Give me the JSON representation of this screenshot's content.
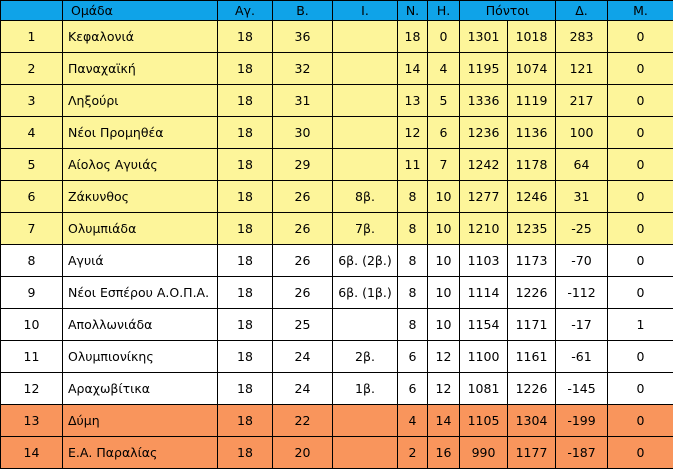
{
  "columns": [
    "",
    "Ομάδα",
    "Αγ.",
    "Β.",
    "Ι.",
    "Ν.",
    "Η.",
    "Πόντοι",
    "Δ.",
    "Μ."
  ],
  "colors": {
    "header": "#0fa3e8",
    "promo": "#fdf59a",
    "plain": "#ffffff",
    "releg": "#f9955c"
  },
  "rows": [
    {
      "pos": "1",
      "team": "Κεφαλονιά",
      "played": "18",
      "pts": "36",
      "tie": "",
      "w": "18",
      "l": "0",
      "pf": "1301",
      "pa": "1018",
      "diff": "283",
      "m": "0",
      "zone": "promo"
    },
    {
      "pos": "2",
      "team": "Παναχαϊκή",
      "played": "18",
      "pts": "32",
      "tie": "",
      "w": "14",
      "l": "4",
      "pf": "1195",
      "pa": "1074",
      "diff": "121",
      "m": "0",
      "zone": "promo"
    },
    {
      "pos": "3",
      "team": "Ληξούρι",
      "played": "18",
      "pts": "31",
      "tie": "",
      "w": "13",
      "l": "5",
      "pf": "1336",
      "pa": "1119",
      "diff": "217",
      "m": "0",
      "zone": "promo"
    },
    {
      "pos": "4",
      "team": "Νέοι Προμηθέα",
      "played": "18",
      "pts": "30",
      "tie": "",
      "w": "12",
      "l": "6",
      "pf": "1236",
      "pa": "1136",
      "diff": "100",
      "m": "0",
      "zone": "promo"
    },
    {
      "pos": "5",
      "team": "Αίολος Αγυιάς",
      "played": "18",
      "pts": "29",
      "tie": "",
      "w": "11",
      "l": "7",
      "pf": "1242",
      "pa": "1178",
      "diff": "64",
      "m": "0",
      "zone": "promo"
    },
    {
      "pos": "6",
      "team": "Ζάκυνθος",
      "played": "18",
      "pts": "26",
      "tie": "8β.",
      "w": "8",
      "l": "10",
      "pf": "1277",
      "pa": "1246",
      "diff": "31",
      "m": "0",
      "zone": "promo"
    },
    {
      "pos": "7",
      "team": "Ολυμπιάδα",
      "played": "18",
      "pts": "26",
      "tie": "7β.",
      "w": "8",
      "l": "10",
      "pf": "1210",
      "pa": "1235",
      "diff": "-25",
      "m": "0",
      "zone": "promo"
    },
    {
      "pos": "8",
      "team": "Αγυιά",
      "played": "18",
      "pts": "26",
      "tie": "6β. (2β.)",
      "w": "8",
      "l": "10",
      "pf": "1103",
      "pa": "1173",
      "diff": "-70",
      "m": "0",
      "zone": "plain"
    },
    {
      "pos": "9",
      "team": "Νέοι Εσπέρου Α.Ο.Π.Α.",
      "played": "18",
      "pts": "26",
      "tie": "6β. (1β.)",
      "w": "8",
      "l": "10",
      "pf": "1114",
      "pa": "1226",
      "diff": "-112",
      "m": "0",
      "zone": "plain"
    },
    {
      "pos": "10",
      "team": "Απολλωνιάδα",
      "played": "18",
      "pts": "25",
      "tie": "",
      "w": "8",
      "l": "10",
      "pf": "1154",
      "pa": "1171",
      "diff": "-17",
      "m": "1",
      "zone": "plain"
    },
    {
      "pos": "11",
      "team": "Ολυμπιονίκης",
      "played": "18",
      "pts": "24",
      "tie": "2β.",
      "w": "6",
      "l": "12",
      "pf": "1100",
      "pa": "1161",
      "diff": "-61",
      "m": "0",
      "zone": "plain"
    },
    {
      "pos": "12",
      "team": "Αραχωβίτικα",
      "played": "18",
      "pts": "24",
      "tie": "1β.",
      "w": "6",
      "l": "12",
      "pf": "1081",
      "pa": "1226",
      "diff": "-145",
      "m": "0",
      "zone": "plain"
    },
    {
      "pos": "13",
      "team": "Δύμη",
      "played": "18",
      "pts": "22",
      "tie": "",
      "w": "4",
      "l": "14",
      "pf": "1105",
      "pa": "1304",
      "diff": "-199",
      "m": "0",
      "zone": "releg"
    },
    {
      "pos": "14",
      "team": "Ε.Α. Παραλίας",
      "played": "18",
      "pts": "20",
      "tie": "",
      "w": "2",
      "l": "16",
      "pf": "990",
      "pa": "1177",
      "diff": "-187",
      "m": "0",
      "zone": "releg"
    }
  ]
}
